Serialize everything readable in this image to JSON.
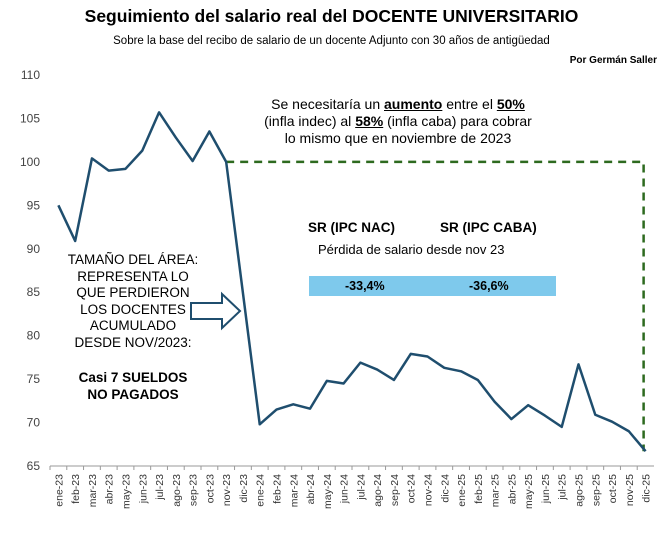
{
  "header": {
    "title": "Seguimiento del salario real del DOCENTE UNIVERSITARIO",
    "subtitle": "Sobre la base del recibo de salario de un docente Adjunto con 30 años de antigüedad",
    "author": "Por Germán Saller"
  },
  "note": {
    "part1": "Se necesitaría un ",
    "bold1": "aumento",
    "part2": " entre el ",
    "bold2": "50%",
    "part3": " (infla indec) al ",
    "bold3": "58%",
    "part4": " (infla caba) para cobrar lo mismo que en noviembre de 2023"
  },
  "loss": {
    "head_nac": "SR (IPC NAC)",
    "head_caba": "SR (IPC CABA)",
    "subtitle": "Pérdida de salario desde nov  23",
    "value_nac": "-33,4%",
    "value_caba": "-36,6%",
    "bar_color": "#7ec9ec"
  },
  "area_note": {
    "lines": [
      "TAMAÑO  DEL ÁREA:",
      "REPRESENTA LO",
      "QUE PERDIERON",
      "LOS DOCENTES",
      "ACUMULADO",
      "DESDE NOV/2023:"
    ],
    "bold_lines": [
      "Casi 7 SUELDOS",
      "NO PAGADOS"
    ]
  },
  "chart_data": {
    "type": "line",
    "categories": [
      "ene-23",
      "feb-23",
      "mar-23",
      "abr-23",
      "may-23",
      "jun-23",
      "jul-23",
      "ago-23",
      "sep-23",
      "oct-23",
      "nov-23",
      "dic-23",
      "ene-24",
      "feb-24",
      "mar-24",
      "abr-24",
      "may-24",
      "jun-24",
      "jul-24",
      "ago-24",
      "sep-24",
      "oct-24",
      "nov-24",
      "dic-24",
      "ene-25",
      "feb-25",
      "mar-25",
      "abr-25",
      "may-25",
      "jun-25",
      "jul-25",
      "ago-25",
      "sep-25",
      "oct-25",
      "nov-25",
      "dic-25"
    ],
    "series": [
      {
        "values": [
          95,
          90.9,
          100.4,
          99.0,
          99.2,
          101.3,
          105.7,
          102.8,
          100.1,
          103.5,
          100.0,
          null,
          69.8,
          71.5,
          72.1,
          71.6,
          74.8,
          74.5,
          76.9,
          76.1,
          74.9,
          77.9,
          77.6,
          76.3,
          75.9,
          74.9,
          72.4,
          70.4,
          72.0,
          70.8,
          69.5,
          76.7,
          70.9,
          70.1,
          69.0,
          66.7
        ],
        "color": "#1f4e6e"
      }
    ],
    "reference": {
      "value": 100,
      "from": "nov-23",
      "to": "dic-25",
      "color": "#2d6a1f",
      "style": "dashed"
    },
    "ylim": [
      65,
      110
    ],
    "yticks": [
      65,
      70,
      75,
      80,
      85,
      90,
      95,
      100,
      105,
      110
    ],
    "grid": false,
    "legend": "none"
  }
}
